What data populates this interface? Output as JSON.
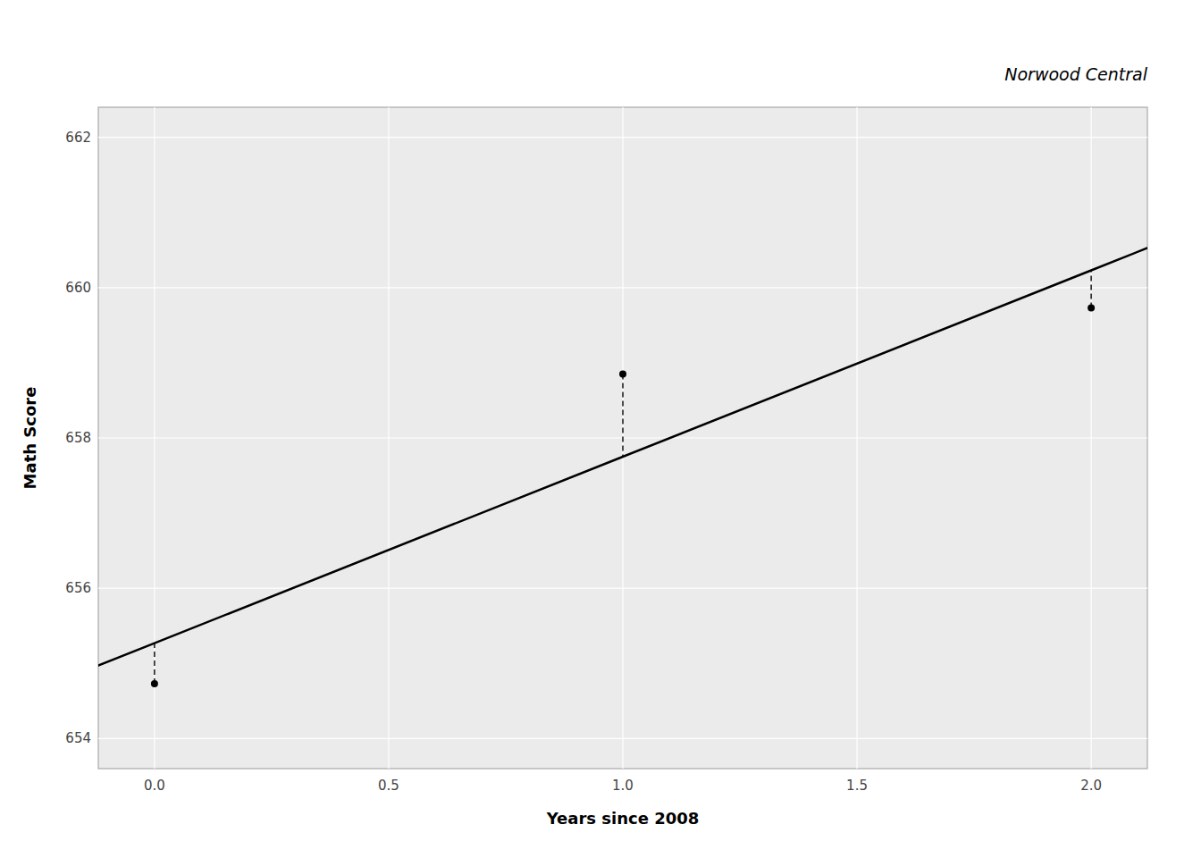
{
  "chart_data": {
    "type": "scatter",
    "title": "Norwood Central",
    "x_label": "Years since 2008",
    "y_label": "Math Score",
    "xlim": [
      -0.12,
      2.12
    ],
    "ylim": [
      653.6,
      662.4
    ],
    "xticks": [
      {
        "value": 0.0,
        "label": "0.0"
      },
      0.5,
      {
        "value": 1.0,
        "label": "1.0"
      },
      1.5,
      {
        "value": 2.0,
        "label": "2.0"
      }
    ],
    "yticks": [
      654,
      656,
      658,
      660,
      662
    ],
    "grid": true,
    "series": [
      {
        "type": "line",
        "color": "#000000",
        "x": [
          -0.12,
          0,
          1,
          2,
          2.12
        ],
        "values": [
          654.9724,
          655.27,
          657.75,
          660.23,
          660.5276
        ]
      },
      {
        "type": "scatter",
        "color": "#000000",
        "x": [
          0,
          1,
          2
        ],
        "values": [
          654.73,
          658.85,
          659.73
        ],
        "fitted": [
          655.27,
          657.75,
          660.23
        ]
      }
    ]
  }
}
